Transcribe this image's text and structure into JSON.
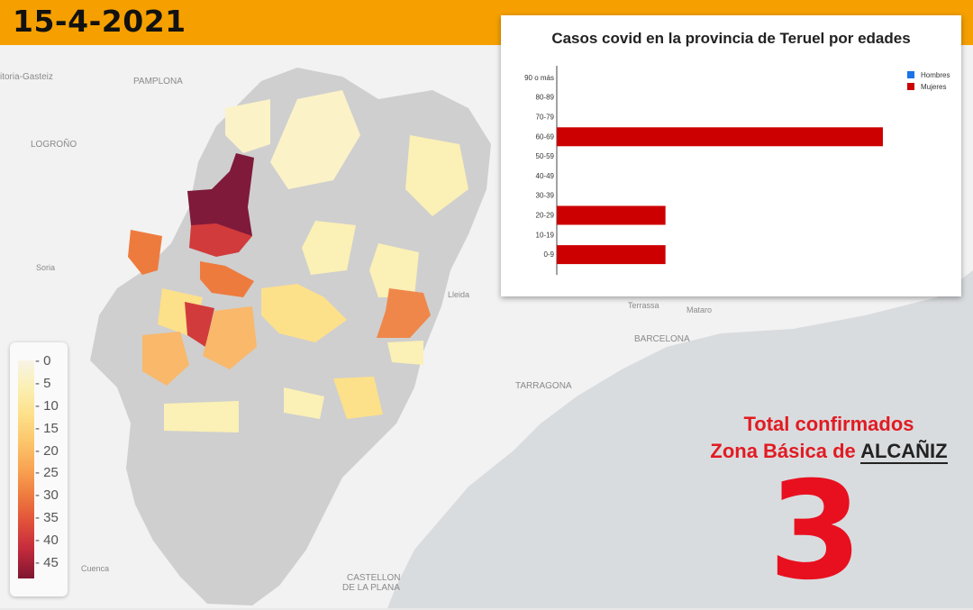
{
  "header": {
    "date": "15-4-2021"
  },
  "map": {
    "city_labels": [
      {
        "name": "Pamplona",
        "text": "PAMPLONA"
      },
      {
        "name": "Logrono",
        "text": "LOGROÑO"
      },
      {
        "name": "Vitoria",
        "text": "itoria-Gasteiz"
      },
      {
        "name": "Soria",
        "text": "Soria"
      },
      {
        "name": "Lleida",
        "text": "Lleida"
      },
      {
        "name": "Terrassa",
        "text": "Terrassa"
      },
      {
        "name": "Mataro",
        "text": "Mataro"
      },
      {
        "name": "Barcelona",
        "text": "BARCELONA"
      },
      {
        "name": "Tarragona",
        "text": "TARRAGONA"
      },
      {
        "name": "Castellon-1",
        "text": "CASTELLON"
      },
      {
        "name": "Castellon-2",
        "text": "DE LA PLANA"
      },
      {
        "name": "Cuenca",
        "text": "Cuenca"
      }
    ],
    "colors": {
      "water": "#d9dcdf",
      "land": "#f2f2f2",
      "region": "#cfcfcf"
    }
  },
  "legend": {
    "ticks": [
      "0",
      "5",
      "10",
      "15",
      "20",
      "25",
      "30",
      "35",
      "40",
      "45"
    ]
  },
  "chart_data": {
    "type": "bar",
    "orientation": "horizontal",
    "title": "Casos covid en la provincia de Teruel por edades",
    "categories": [
      "90 o más",
      "80-89",
      "70-79",
      "60-69",
      "50-59",
      "40-49",
      "30-39",
      "20-29",
      "10-19",
      "0-9"
    ],
    "series": [
      {
        "name": "Hombres",
        "color": "#1a73e8",
        "values": [
          0,
          0,
          0,
          0,
          0,
          0,
          0,
          0,
          0,
          0
        ]
      },
      {
        "name": "Mujeres",
        "color": "#cc0000",
        "values": [
          0,
          0,
          0,
          3,
          0,
          0,
          0,
          1,
          0,
          1
        ]
      }
    ],
    "xlim": [
      0,
      3.05
    ],
    "legend_position": "top-right",
    "grid": false
  },
  "summary": {
    "line1": "Total confirmados",
    "line2_prefix": "Zona Básica de ",
    "zone": "ALCAÑIZ",
    "total": "3"
  }
}
